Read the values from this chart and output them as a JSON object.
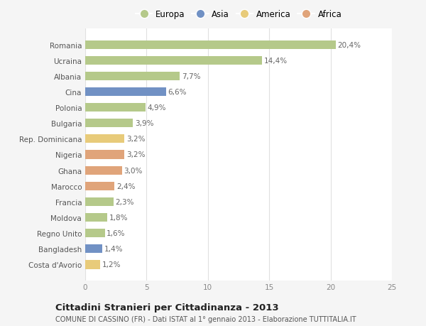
{
  "categories": [
    "Romania",
    "Ucraina",
    "Albania",
    "Cina",
    "Polonia",
    "Bulgaria",
    "Rep. Dominicana",
    "Nigeria",
    "Ghana",
    "Marocco",
    "Francia",
    "Moldova",
    "Regno Unito",
    "Bangladesh",
    "Costa d'Avorio"
  ],
  "values": [
    20.4,
    14.4,
    7.7,
    6.6,
    4.9,
    3.9,
    3.2,
    3.2,
    3.0,
    2.4,
    2.3,
    1.8,
    1.6,
    1.4,
    1.2
  ],
  "labels": [
    "20,4%",
    "14,4%",
    "7,7%",
    "6,6%",
    "4,9%",
    "3,9%",
    "3,2%",
    "3,2%",
    "3,0%",
    "2,4%",
    "2,3%",
    "1,8%",
    "1,6%",
    "1,4%",
    "1,2%"
  ],
  "colors": [
    "#b5c98a",
    "#b5c98a",
    "#b5c98a",
    "#7191c4",
    "#b5c98a",
    "#b5c98a",
    "#e8cb7a",
    "#e0a47a",
    "#e0a47a",
    "#e0a47a",
    "#b5c98a",
    "#b5c98a",
    "#b5c98a",
    "#7191c4",
    "#e8cb7a"
  ],
  "legend": [
    {
      "label": "Europa",
      "color": "#b5c98a"
    },
    {
      "label": "Asia",
      "color": "#7191c4"
    },
    {
      "label": "America",
      "color": "#e8cb7a"
    },
    {
      "label": "Africa",
      "color": "#e0a47a"
    }
  ],
  "xlim": [
    0,
    25
  ],
  "xticks": [
    0,
    5,
    10,
    15,
    20,
    25
  ],
  "title": "Cittadini Stranieri per Cittadinanza - 2013",
  "subtitle": "COMUNE DI CASSINO (FR) - Dati ISTAT al 1° gennaio 2013 - Elaborazione TUTTITALIA.IT",
  "background_color": "#f5f5f5",
  "bar_background": "#ffffff",
  "grid_color": "#e0e0e0",
  "label_fontsize": 7.5,
  "tick_fontsize": 7.5,
  "title_fontsize": 9.5,
  "subtitle_fontsize": 7.0,
  "bar_height": 0.55
}
